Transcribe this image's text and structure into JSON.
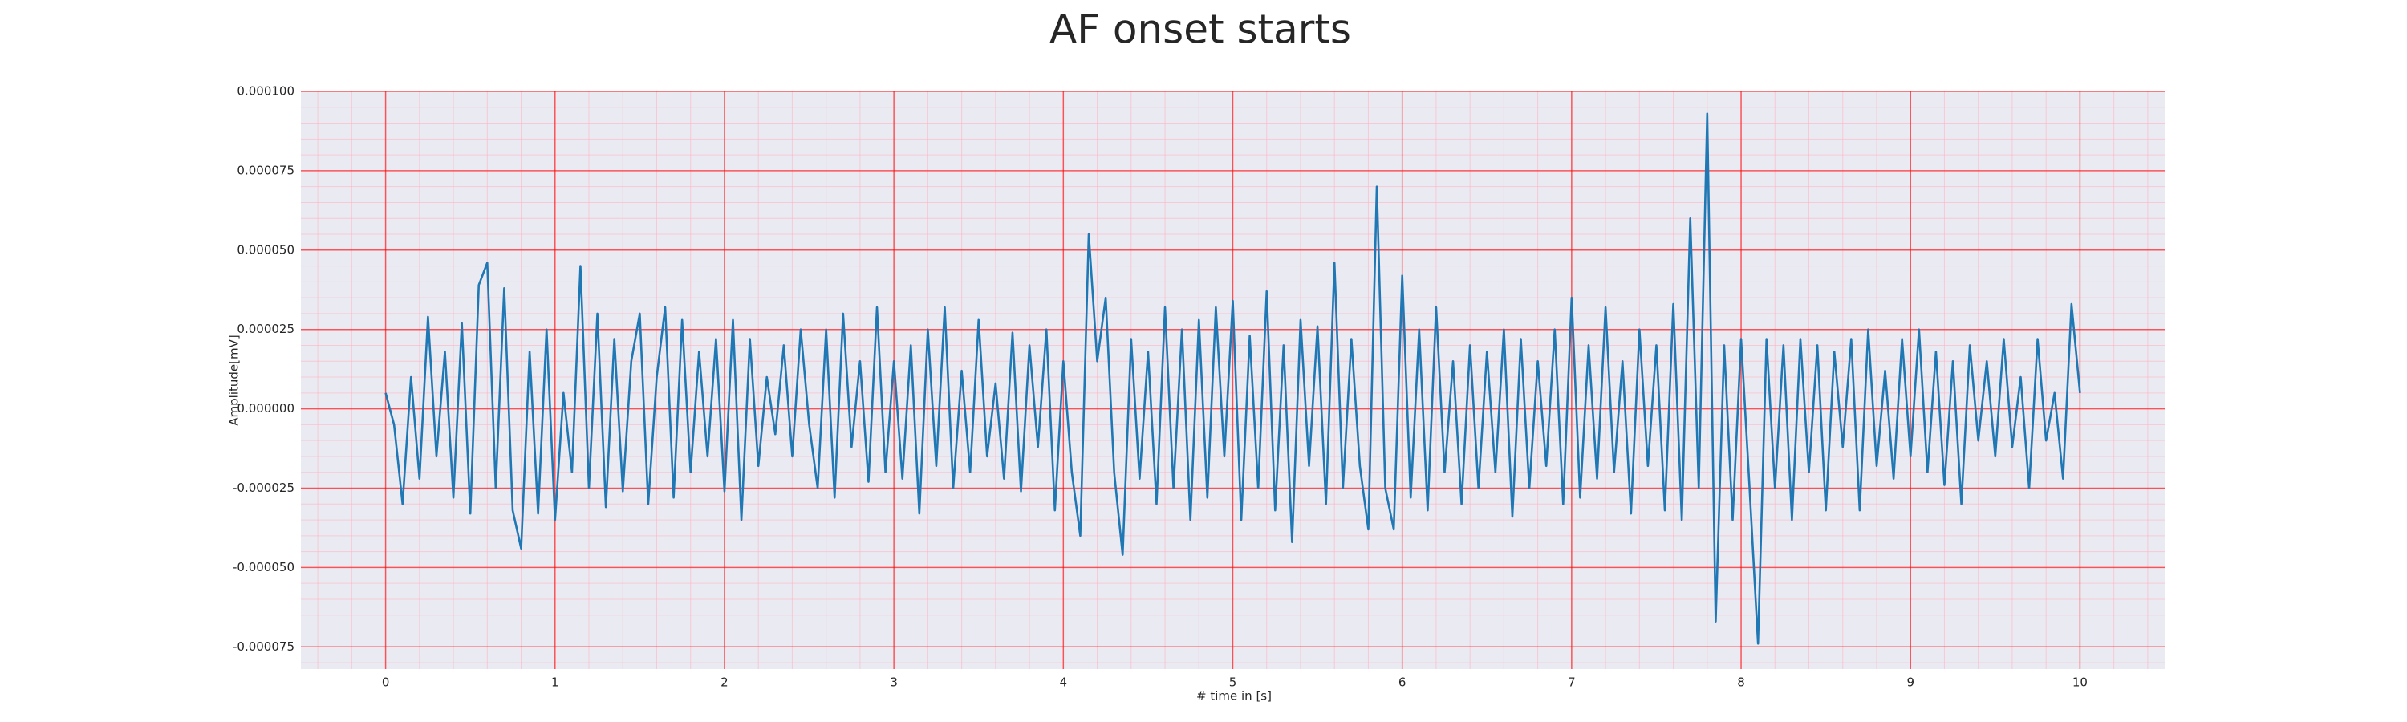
{
  "chart_data": {
    "type": "line",
    "title": "AF onset starts",
    "x_label": "# time in [s]",
    "y_label": "Amplitude[mV]",
    "color": "#1f77b4",
    "grid": true,
    "xlim": [
      -0.5,
      10.5
    ],
    "xticks": [
      0,
      1,
      2,
      3,
      4,
      5,
      6,
      7,
      8,
      9,
      10
    ],
    "ylim": [
      -8.2e-05,
      0.0001
    ],
    "yticks": [
      {
        "value": -7.5e-05,
        "label": "-0.000075"
      },
      {
        "value": -5e-05,
        "label": "-0.000050"
      },
      {
        "value": -2.5e-05,
        "label": "-0.000025"
      },
      {
        "value": 0,
        "label": "0.000000"
      },
      {
        "value": 2.5e-05,
        "label": "0.000025"
      },
      {
        "value": 5e-05,
        "label": "0.000050"
      },
      {
        "value": 7.5e-05,
        "label": "0.000075"
      },
      {
        "value": 0.0001,
        "label": "0.000100"
      }
    ],
    "x": [
      0,
      0.05,
      0.1,
      0.15,
      0.2,
      0.25,
      0.3,
      0.35,
      0.4,
      0.45,
      0.5,
      0.55,
      0.6,
      0.65,
      0.7,
      0.75,
      0.8,
      0.85,
      0.9,
      0.95,
      1,
      1.05,
      1.1,
      1.15,
      1.2,
      1.25,
      1.3,
      1.35,
      1.4,
      1.45,
      1.5,
      1.55,
      1.6,
      1.65,
      1.7,
      1.75,
      1.8,
      1.85,
      1.9,
      1.95,
      2,
      2.05,
      2.1,
      2.15,
      2.2,
      2.25,
      2.3,
      2.35,
      2.4,
      2.45,
      2.5,
      2.55,
      2.6,
      2.65,
      2.7,
      2.75,
      2.8,
      2.85,
      2.9,
      2.95,
      3,
      3.05,
      3.1,
      3.15,
      3.2,
      3.25,
      3.3,
      3.35,
      3.4,
      3.45,
      3.5,
      3.55,
      3.6,
      3.65,
      3.7,
      3.75,
      3.8,
      3.85,
      3.9,
      3.95,
      4,
      4.05,
      4.1,
      4.15,
      4.2,
      4.25,
      4.3,
      4.35,
      4.4,
      4.45,
      4.5,
      4.55,
      4.6,
      4.65,
      4.7,
      4.75,
      4.8,
      4.85,
      4.9,
      4.95,
      5,
      5.05,
      5.1,
      5.15,
      5.2,
      5.25,
      5.3,
      5.35,
      5.4,
      5.45,
      5.5,
      5.55,
      5.6,
      5.65,
      5.7,
      5.75,
      5.8,
      5.85,
      5.9,
      5.95,
      6,
      6.05,
      6.1,
      6.15,
      6.2,
      6.25,
      6.3,
      6.35,
      6.4,
      6.45,
      6.5,
      6.55,
      6.6,
      6.65,
      6.7,
      6.75,
      6.8,
      6.85,
      6.9,
      6.95,
      7,
      7.05,
      7.1,
      7.15,
      7.2,
      7.25,
      7.3,
      7.35,
      7.4,
      7.45,
      7.5,
      7.55,
      7.6,
      7.65,
      7.7,
      7.75,
      7.8,
      7.85,
      7.9,
      7.95,
      8,
      8.05,
      8.1,
      8.15,
      8.2,
      8.25,
      8.3,
      8.35,
      8.4,
      8.45,
      8.5,
      8.55,
      8.6,
      8.65,
      8.7,
      8.75,
      8.8,
      8.85,
      8.9,
      8.95,
      9,
      9.05,
      9.1,
      9.15,
      9.2,
      9.25,
      9.3,
      9.35,
      9.4,
      9.45,
      9.5,
      9.55,
      9.6,
      9.65,
      9.7,
      9.75,
      9.8,
      9.85,
      9.9,
      9.95,
      10
    ],
    "values": [
      5e-06,
      -5e-06,
      -3e-05,
      1e-05,
      -2.2e-05,
      2.9e-05,
      -1.5e-05,
      1.8e-05,
      -2.8e-05,
      2.7e-05,
      -3.3e-05,
      3.9e-05,
      4.6e-05,
      -2.5e-05,
      3.8e-05,
      -3.2e-05,
      -4.4e-05,
      1.8e-05,
      -3.3e-05,
      2.5e-05,
      -3.5e-05,
      5e-06,
      -2e-05,
      4.5e-05,
      -2.5e-05,
      3e-05,
      -3.1e-05,
      2.2e-05,
      -2.6e-05,
      1.5e-05,
      3e-05,
      -3e-05,
      1e-05,
      3.2e-05,
      -2.8e-05,
      2.8e-05,
      -2e-05,
      1.8e-05,
      -1.5e-05,
      2.2e-05,
      -2.6e-05,
      2.8e-05,
      -3.5e-05,
      2.2e-05,
      -1.8e-05,
      1e-05,
      -8e-06,
      2e-05,
      -1.5e-05,
      2.5e-05,
      -5e-06,
      -2.5e-05,
      2.5e-05,
      -2.8e-05,
      3e-05,
      -1.2e-05,
      1.5e-05,
      -2.3e-05,
      3.2e-05,
      -2e-05,
      1.5e-05,
      -2.2e-05,
      2e-05,
      -3.3e-05,
      2.5e-05,
      -1.8e-05,
      3.2e-05,
      -2.5e-05,
      1.2e-05,
      -2e-05,
      2.8e-05,
      -1.5e-05,
      8e-06,
      -2.2e-05,
      2.4e-05,
      -2.6e-05,
      2e-05,
      -1.2e-05,
      2.5e-05,
      -3.2e-05,
      1.5e-05,
      -2e-05,
      -4e-05,
      5.5e-05,
      1.5e-05,
      3.5e-05,
      -2e-05,
      -4.6e-05,
      2.2e-05,
      -2.2e-05,
      1.8e-05,
      -3e-05,
      3.2e-05,
      -2.5e-05,
      2.5e-05,
      -3.5e-05,
      2.8e-05,
      -2.8e-05,
      3.2e-05,
      -1.5e-05,
      3.4e-05,
      -3.5e-05,
      2.3e-05,
      -2.5e-05,
      3.7e-05,
      -3.2e-05,
      2e-05,
      -4.2e-05,
      2.8e-05,
      -1.8e-05,
      2.6e-05,
      -3e-05,
      4.6e-05,
      -2.5e-05,
      2.2e-05,
      -1.8e-05,
      -3.8e-05,
      7e-05,
      -2.5e-05,
      -3.8e-05,
      4.2e-05,
      -2.8e-05,
      2.5e-05,
      -3.2e-05,
      3.2e-05,
      -2e-05,
      1.5e-05,
      -3e-05,
      2e-05,
      -2.5e-05,
      1.8e-05,
      -2e-05,
      2.5e-05,
      -3.4e-05,
      2.2e-05,
      -2.5e-05,
      1.5e-05,
      -1.8e-05,
      2.5e-05,
      -3e-05,
      3.5e-05,
      -2.8e-05,
      2e-05,
      -2.2e-05,
      3.2e-05,
      -2e-05,
      1.5e-05,
      -3.3e-05,
      2.5e-05,
      -1.8e-05,
      2e-05,
      -3.2e-05,
      3.3e-05,
      -3.5e-05,
      6e-05,
      -2.5e-05,
      9.3e-05,
      -6.7e-05,
      2e-05,
      -3.5e-05,
      2.2e-05,
      -2.5e-05,
      -7.4e-05,
      2.2e-05,
      -2.5e-05,
      2e-05,
      -3.5e-05,
      2.2e-05,
      -2e-05,
      2e-05,
      -3.2e-05,
      1.8e-05,
      -1.2e-05,
      2.2e-05,
      -3.2e-05,
      2.5e-05,
      -1.8e-05,
      1.2e-05,
      -2.2e-05,
      2.2e-05,
      -1.5e-05,
      2.5e-05,
      -2e-05,
      1.8e-05,
      -2.4e-05,
      1.5e-05,
      -3e-05,
      2e-05,
      -1e-05,
      1.5e-05,
      -1.5e-05,
      2.2e-05,
      -1.2e-05,
      1e-05,
      -2.5e-05,
      2.2e-05,
      -1e-05,
      5e-06,
      -2.2e-05,
      3.3e-05,
      5e-06
    ]
  }
}
